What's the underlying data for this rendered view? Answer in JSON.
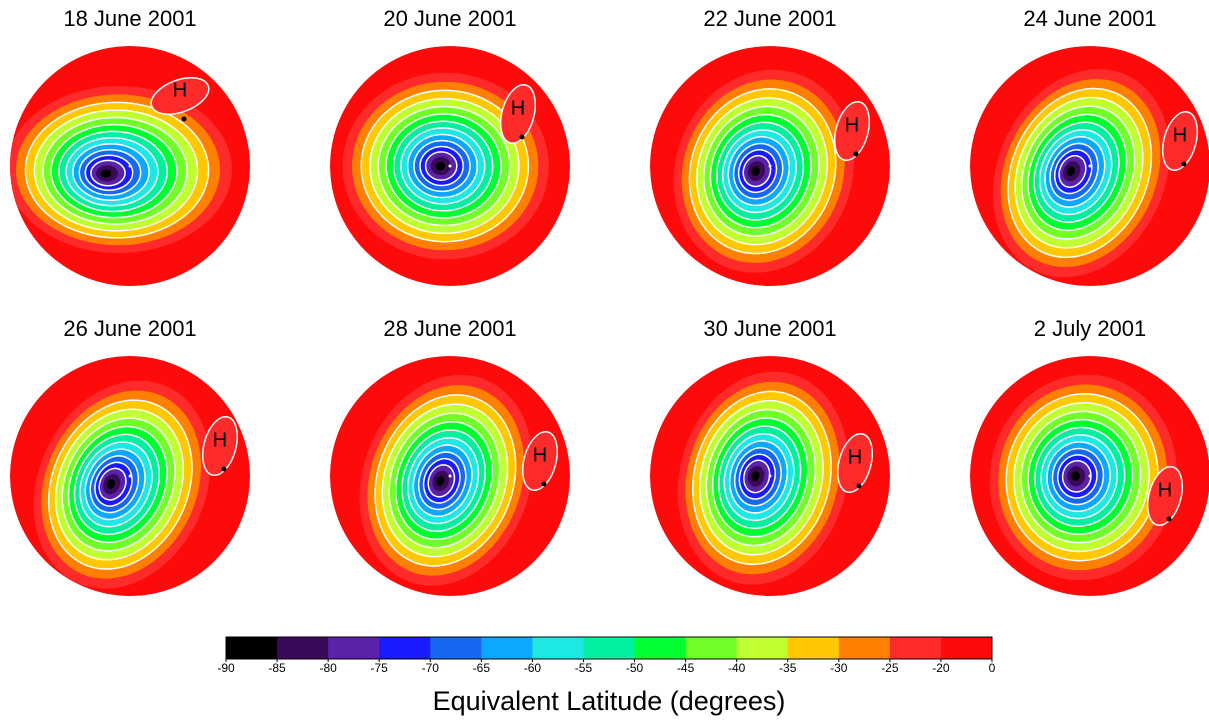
{
  "panels": [
    {
      "title": "18 June 2001",
      "marker": "H"
    },
    {
      "title": "20 June 2001",
      "marker": "H"
    },
    {
      "title": "22 June 2001",
      "marker": "H"
    },
    {
      "title": "24 June 2001",
      "marker": "H"
    },
    {
      "title": "26 June 2001",
      "marker": "H"
    },
    {
      "title": "28 June 2001",
      "marker": "H"
    },
    {
      "title": "30 June 2001",
      "marker": "H"
    },
    {
      "title": "2 July 2001",
      "marker": "H"
    }
  ],
  "colorbar": {
    "label": "Equivalent Latitude (degrees)",
    "ticks": [
      -90,
      -85,
      -80,
      -75,
      -70,
      -65,
      -60,
      -55,
      -50,
      -45,
      -40,
      -35,
      -30,
      -25,
      -20,
      0
    ],
    "colors": [
      "#000000",
      "#3a0a58",
      "#5a22a8",
      "#1a1aff",
      "#1668f0",
      "#0aa8ff",
      "#1ee8e4",
      "#00f0a0",
      "#00ff30",
      "#70ff28",
      "#c0ff30",
      "#ffc800",
      "#ff8000",
      "#ff2a2a",
      "#ff0a0a"
    ]
  }
}
